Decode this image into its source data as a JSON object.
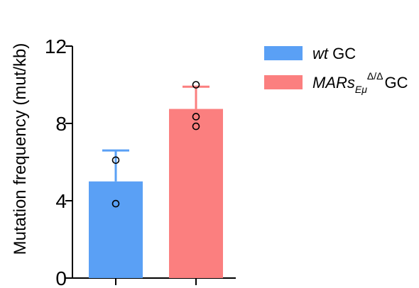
{
  "chart_data": {
    "type": "bar",
    "title": "",
    "xlabel": "",
    "ylabel": "Mutation frequency (mut/kb)",
    "ylim": [
      0,
      12
    ],
    "yticks": [
      0,
      4,
      8,
      12
    ],
    "grid": false,
    "legend_position": "top-right",
    "categories": [
      "wt GC",
      "MARsEμΔ/Δ GC"
    ],
    "series": [
      {
        "name": "wt GC",
        "color": "#5aa0f5",
        "value": 5.0,
        "error": 1.6,
        "points": [
          6.1,
          3.85
        ]
      },
      {
        "name": "MARsEμΔ/Δ GC",
        "color": "#fb7f7f",
        "value": 8.75,
        "error": 1.15,
        "points": [
          10.0,
          8.35,
          7.85
        ]
      }
    ],
    "legend": [
      {
        "italic": "wt",
        "text": " GC",
        "color": "#5aa0f5"
      },
      {
        "italic": "MARs",
        "sub": "Eμ",
        "sup": "Δ/Δ",
        "text": "GC",
        "color": "#fb7f7f"
      }
    ]
  }
}
